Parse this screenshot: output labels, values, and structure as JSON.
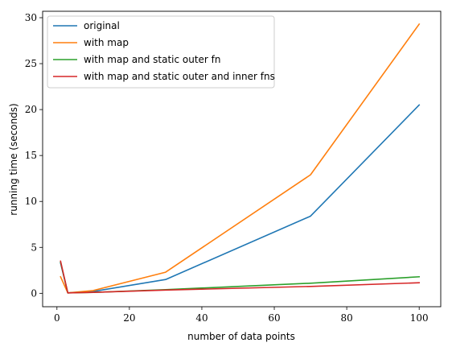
{
  "chart_data": {
    "type": "line",
    "xlabel": "number of data points",
    "ylabel": "running time (seconds)",
    "xlim": [
      -3.95,
      105.95
    ],
    "ylim": [
      -1.46,
      30.7
    ],
    "xticks": [
      0,
      20,
      40,
      60,
      80,
      100
    ],
    "yticks": [
      0,
      5,
      10,
      15,
      20,
      25,
      30
    ],
    "grid": false,
    "legend_position": "top-left",
    "x": [
      1,
      3,
      10,
      30,
      70,
      100
    ],
    "series": [
      {
        "name": "original",
        "color": "#1f77b4",
        "values": [
          3.3,
          0.05,
          0.2,
          1.5,
          8.4,
          20.5
        ]
      },
      {
        "name": "with map",
        "color": "#ff7f0e",
        "values": [
          1.8,
          0.05,
          0.3,
          2.3,
          12.9,
          29.3
        ]
      },
      {
        "name": "with map and static outer fn",
        "color": "#2ca02c",
        "values": [
          3.4,
          0.05,
          0.1,
          0.4,
          1.1,
          1.8
        ]
      },
      {
        "name": "with map and static outer and inner fns",
        "color": "#d62728",
        "values": [
          3.5,
          0.05,
          0.1,
          0.35,
          0.75,
          1.15
        ]
      }
    ]
  }
}
